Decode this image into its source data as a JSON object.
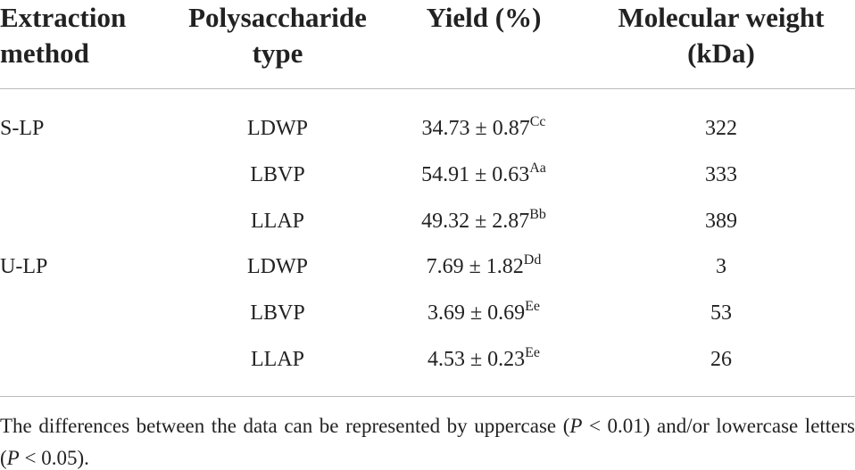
{
  "table": {
    "headers": [
      "Extraction method",
      "Polysaccharide type",
      "Yield (%)",
      "Molecular weight (kDa)"
    ],
    "groups": [
      {
        "method": "S-LP",
        "rows": [
          {
            "type": "LDWP",
            "yield": "34.73 ± 0.87",
            "sup": "Cc",
            "mw": "322"
          },
          {
            "type": "LBVP",
            "yield": "54.91 ± 0.63",
            "sup": "Aa",
            "mw": "333"
          },
          {
            "type": "LLAP",
            "yield": "49.32 ± 2.87",
            "sup": "Bb",
            "mw": "389"
          }
        ]
      },
      {
        "method": "U-LP",
        "rows": [
          {
            "type": "LDWP",
            "yield": "7.69 ± 1.82",
            "sup": "Dd",
            "mw": "3"
          },
          {
            "type": "LBVP",
            "yield": "3.69 ± 0.69",
            "sup": "Ee",
            "mw": "53"
          },
          {
            "type": "LLAP",
            "yield": "4.53 ± 0.23",
            "sup": "Ee",
            "mw": "26"
          }
        ]
      }
    ],
    "footnote": [
      "The differences between the data can be represented by uppercase (",
      "P",
      " < 0.01) and/or lowercase letters (",
      "P",
      " < 0.05)."
    ]
  }
}
